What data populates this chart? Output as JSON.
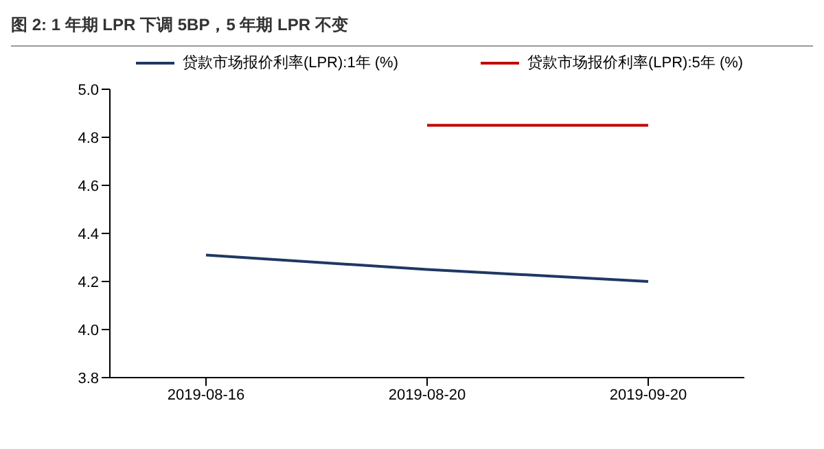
{
  "chart_data": {
    "type": "line",
    "title": "图 2: 1 年期 LPR 下调 5BP，5 年期 LPR 不变",
    "categories": [
      "2019-08-16",
      "2019-08-20",
      "2019-09-20"
    ],
    "series": [
      {
        "name": "贷款市场报价利率(LPR):1年 (%)",
        "color": "#1f3864",
        "values": [
          4.31,
          4.25,
          4.2
        ]
      },
      {
        "name": "贷款市场报价利率(LPR):5年 (%)",
        "color": "#c00000",
        "values": [
          null,
          4.85,
          4.85
        ]
      }
    ],
    "ylim": [
      3.8,
      5.0
    ],
    "yticks": [
      {
        "value": 3.8,
        "label": "3.8"
      },
      {
        "value": 4.0,
        "label": "4.0"
      },
      {
        "value": 4.2,
        "label": "4.2"
      },
      {
        "value": 4.4,
        "label": "4.4"
      },
      {
        "value": 4.6,
        "label": "4.6"
      },
      {
        "value": 4.8,
        "label": "4.8"
      },
      {
        "value": 5.0,
        "label": "5.0"
      }
    ],
    "legend": "top",
    "marker": "none",
    "line_style": "solid"
  }
}
